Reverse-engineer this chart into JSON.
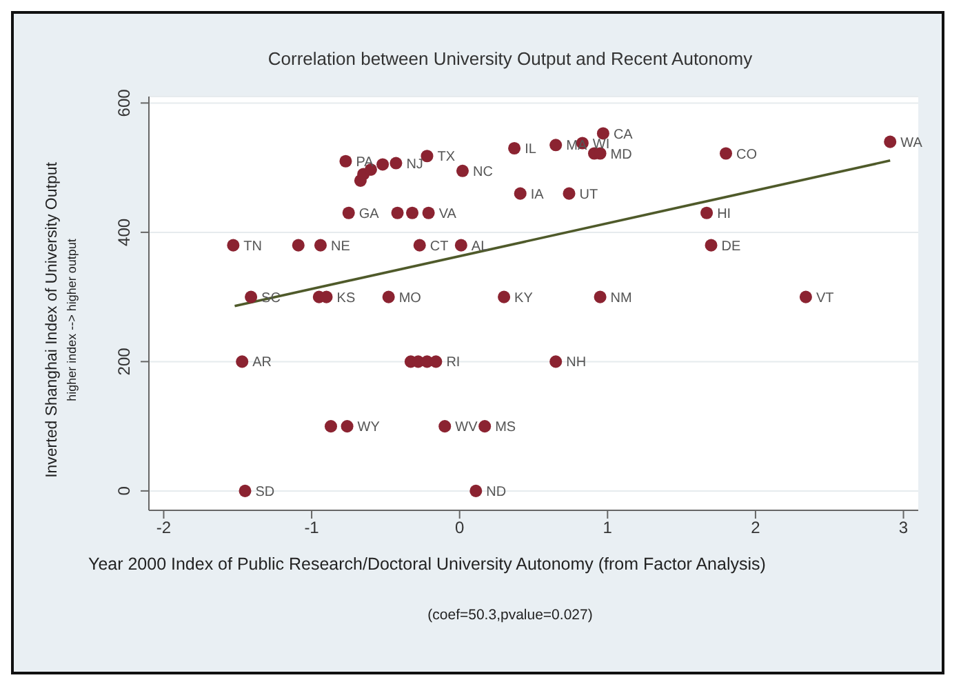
{
  "chart_data": {
    "type": "scatter",
    "title": "Correlation between University Output and Recent Autonomy",
    "xlabel": "Year 2000 Index of Public Research/Doctoral University Autonomy (from Factor Analysis)",
    "ylabel": "Inverted Shanghai Index of University Output",
    "subtitle": "higher index --> higher output",
    "annotations": [
      "(coef=50.3,pvalue=0.027)"
    ],
    "xlim": [
      -2.1,
      3.1
    ],
    "xticks": [
      -2,
      -1,
      0,
      1,
      2,
      3
    ],
    "ylim": [
      -30,
      610
    ],
    "yticks": [
      0,
      200,
      400,
      600
    ],
    "grid": "y",
    "legend": false,
    "series": [
      {
        "type": "scatter",
        "color": "#8b2331",
        "marker": "circle",
        "x": [
          -1.53,
          -1.09,
          -0.94,
          -0.27,
          0.01,
          1.7,
          -1.41,
          -0.95,
          -0.9,
          -0.48,
          0.3,
          0.95,
          2.34,
          -1.47,
          -0.33,
          -0.28,
          -0.22,
          -0.16,
          0.65,
          -0.87,
          -0.76,
          -0.1,
          0.17,
          -1.45,
          0.11,
          -0.75,
          -0.42,
          -0.32,
          -0.21,
          0.41,
          0.74,
          0.02,
          -0.77,
          -0.22,
          0.37,
          -0.67,
          -0.65,
          -0.6,
          -0.52,
          -0.43,
          1.67,
          0.65,
          0.83,
          0.97,
          0.91,
          0.95,
          1.8,
          2.91
        ],
        "values": [
          380,
          380,
          380,
          380,
          380,
          380,
          300,
          300,
          300,
          300,
          300,
          300,
          300,
          200,
          200,
          200,
          200,
          200,
          200,
          100,
          100,
          100,
          100,
          0,
          0,
          430,
          430,
          430,
          430,
          460,
          460,
          495,
          510,
          518,
          530,
          480,
          490,
          497,
          505,
          507,
          430,
          535,
          538,
          553,
          522,
          522,
          522,
          540
        ],
        "value_labels": [
          "TN",
          null,
          "NE",
          "CT",
          "AL",
          "DE",
          "SC",
          null,
          "KS",
          "MO",
          "KY",
          "NM",
          "VT",
          "AR",
          null,
          null,
          null,
          "RI",
          "NH",
          null,
          "WY",
          "WV",
          "MS",
          "SD",
          "ND",
          "GA",
          null,
          null,
          "VA",
          "IA",
          "UT",
          "NC",
          "PA",
          "TX",
          "IL",
          null,
          null,
          null,
          null,
          "NJ",
          "HI",
          "MA",
          "WI",
          "CA",
          null,
          "MD",
          "CO",
          "WA"
        ]
      },
      {
        "type": "line",
        "color": "#4f5a2a",
        "x": [
          -1.52,
          2.91
        ],
        "values": [
          286,
          511
        ]
      }
    ]
  }
}
